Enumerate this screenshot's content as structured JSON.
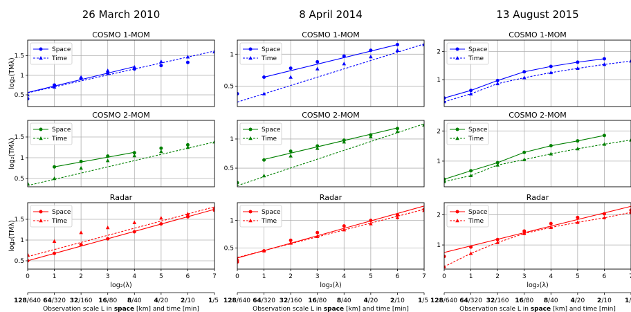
{
  "panel_titles": [
    "COSMO 1-MOM",
    "COSMO 2-MOM",
    "Radar"
  ],
  "ylabel": "log₂(TMλ)",
  "xlabel": "log₂(λ)",
  "legend": [
    "Space",
    "Time"
  ],
  "colors": {
    "COSMO 1-MOM": "#0000ff",
    "COSMO 2-MOM": "#008000",
    "Radar": "#ff0000"
  },
  "scale_axis": {
    "label": "Observation scale L in space [km] and time [min]",
    "ticks": [
      {
        "space": "128",
        "time": "/640"
      },
      {
        "space": "64",
        "time": "/320"
      },
      {
        "space": "32",
        "time": "/160"
      },
      {
        "space": "16",
        "time": "/80"
      },
      {
        "space": "8",
        "time": "/40"
      },
      {
        "space": "4",
        "time": "/20"
      },
      {
        "space": "2",
        "time": "/10"
      },
      {
        "space": "1",
        "time": "/5"
      }
    ]
  },
  "chart_data": [
    {
      "title": "26 March 2010",
      "panels": [
        {
          "name": "COSMO 1-MOM",
          "ylim": [
            0.2,
            1.9
          ],
          "yticks": [
            0.5,
            1.0,
            1.5
          ],
          "show_ylabel": true,
          "series": [
            {
              "name": "Space",
              "style": "solid",
              "marker": "circle",
              "x": [
                0,
                1,
                2,
                3,
                4,
                5,
                6
              ],
              "points": [
                0.4,
                0.75,
                0.92,
                1.05,
                1.16,
                1.25,
                1.33
              ],
              "fit": [
                [
                  0,
                  0.56
                ],
                [
                  4,
                  1.22
                ]
              ]
            },
            {
              "name": "Time",
              "style": "dotted",
              "marker": "triangle",
              "x": [
                0,
                1,
                2,
                3,
                4,
                5,
                6,
                7
              ],
              "points": [
                0.5,
                0.7,
                0.95,
                1.12,
                1.21,
                1.35,
                1.47,
                1.6
              ],
              "fit": [
                [
                  0,
                  0.55
                ],
                [
                  7,
                  1.62
                ]
              ]
            }
          ]
        },
        {
          "name": "COSMO 2-MOM",
          "ylim": [
            0.3,
            1.9
          ],
          "yticks": [
            0.5,
            1.0,
            1.5
          ],
          "show_ylabel": true,
          "series": [
            {
              "name": "Space",
              "style": "solid",
              "marker": "circle",
              "x": [
                1,
                2,
                3,
                4,
                5,
                6
              ],
              "points": [
                0.78,
                0.91,
                1.04,
                1.12,
                1.23,
                1.31
              ],
              "fit": [
                [
                  1,
                  0.78
                ],
                [
                  4,
                  1.13
                ]
              ]
            },
            {
              "name": "Time",
              "style": "dotted",
              "marker": "triangle",
              "x": [
                0,
                1,
                2,
                3,
                4,
                5,
                6,
                7
              ],
              "points": [
                0.38,
                0.5,
                0.75,
                0.93,
                1.05,
                1.15,
                1.25,
                1.38
              ],
              "fit": [
                [
                  0,
                  0.33
                ],
                [
                  7,
                  1.38
                ]
              ]
            }
          ]
        },
        {
          "name": "Radar",
          "ylim": [
            0.3,
            1.9
          ],
          "yticks": [
            0.5,
            1.0,
            1.5
          ],
          "show_ylabel": true,
          "series": [
            {
              "name": "Space",
              "style": "solid",
              "marker": "circle",
              "x": [
                0,
                1,
                2,
                3,
                4,
                5,
                6,
                7
              ],
              "points": [
                0.5,
                0.68,
                0.89,
                1.03,
                1.2,
                1.39,
                1.56,
                1.72
              ],
              "fit": [
                [
                  0,
                  0.5
                ],
                [
                  7,
                  1.74
                ]
              ]
            },
            {
              "name": "Time",
              "style": "dotted",
              "marker": "triangle",
              "x": [
                0,
                1,
                2,
                3,
                4,
                5,
                6,
                7
              ],
              "points": [
                0.65,
                0.97,
                1.18,
                1.3,
                1.42,
                1.53,
                1.63,
                1.78
              ],
              "fit": [
                [
                  0,
                  0.6
                ],
                [
                  7,
                  1.8
                ]
              ]
            }
          ]
        }
      ]
    },
    {
      "title": "8 April 2014",
      "panels": [
        {
          "name": "COSMO 1-MOM",
          "ylim": [
            0.18,
            1.22
          ],
          "yticks": [
            0.5,
            1.0
          ],
          "show_ylabel": false,
          "series": [
            {
              "name": "Space",
              "style": "solid",
              "marker": "circle",
              "x": [
                0,
                1,
                2,
                3,
                4,
                5,
                6
              ],
              "points": [
                0.38,
                0.64,
                0.78,
                0.88,
                0.97,
                1.06,
                1.15
              ],
              "fit": [
                [
                  1,
                  0.64
                ],
                [
                  6,
                  1.15
                ]
              ]
            },
            {
              "name": "Time",
              "style": "dotted",
              "marker": "triangle",
              "x": [
                1,
                2,
                3,
                4,
                5,
                6,
                7
              ],
              "points": [
                0.38,
                0.64,
                0.77,
                0.85,
                0.96,
                1.06,
                1.15
              ],
              "fit": [
                [
                  0,
                  0.25
                ],
                [
                  7,
                  1.16
                ]
              ]
            }
          ]
        },
        {
          "name": "COSMO 2-MOM",
          "ylim": [
            0.18,
            1.32
          ],
          "yticks": [
            0.5,
            1.0
          ],
          "show_ylabel": false,
          "series": [
            {
              "name": "Space",
              "style": "solid",
              "marker": "circle",
              "x": [
                0,
                1,
                2,
                3,
                4,
                5,
                6
              ],
              "points": [
                0.25,
                0.64,
                0.79,
                0.88,
                0.98,
                1.07,
                1.18
              ],
              "fit": [
                [
                  1,
                  0.65
                ],
                [
                  6,
                  1.19
                ]
              ]
            },
            {
              "name": "Time",
              "style": "dotted",
              "marker": "triangle",
              "x": [
                1,
                2,
                3,
                4,
                5,
                6,
                7
              ],
              "points": [
                0.37,
                0.71,
                0.84,
                0.95,
                1.04,
                1.13,
                1.24
              ],
              "fit": [
                [
                  0,
                  0.2
                ],
                [
                  7,
                  1.26
                ]
              ]
            }
          ]
        },
        {
          "name": "Radar",
          "ylim": [
            0.12,
            1.32
          ],
          "yticks": [
            0.5,
            1.0
          ],
          "show_ylabel": false,
          "series": [
            {
              "name": "Space",
              "style": "solid",
              "marker": "circle",
              "x": [
                0,
                1,
                2,
                3,
                4,
                5,
                6,
                7
              ],
              "points": [
                0.25,
                0.45,
                0.64,
                0.78,
                0.9,
                1.0,
                1.1,
                1.2
              ],
              "fit": [
                [
                  0,
                  0.32
                ],
                [
                  7,
                  1.26
                ]
              ]
            },
            {
              "name": "Time",
              "style": "dotted",
              "marker": "triangle",
              "x": [
                0,
                1,
                2,
                3,
                4,
                5,
                6,
                7
              ],
              "points": [
                0.3,
                0.45,
                0.59,
                0.71,
                0.83,
                0.94,
                1.05,
                1.18
              ],
              "fit": [
                [
                  0,
                  0.33
                ],
                [
                  7,
                  1.2
                ]
              ]
            }
          ]
        }
      ]
    },
    {
      "title": "13 August 2015",
      "panels": [
        {
          "name": "COSMO 1-MOM",
          "ylim": [
            0.05,
            2.4
          ],
          "yticks": [
            1,
            2
          ],
          "show_ylabel": false,
          "series": [
            {
              "name": "Space",
              "style": "solid",
              "marker": "circle",
              "x": [
                0,
                1,
                2,
                3,
                4,
                5,
                6
              ],
              "points": [
                0.35,
                0.62,
                0.97,
                1.28,
                1.47,
                1.62,
                1.74
              ],
              "fit": [
                [
                  0,
                  0.35
                ],
                [
                  1,
                  0.62
                ],
                [
                  2,
                  0.97
                ],
                [
                  3,
                  1.28
                ],
                [
                  4,
                  1.47
                ],
                [
                  5,
                  1.62
                ],
                [
                  6,
                  1.74
                ]
              ]
            },
            {
              "name": "Time",
              "style": "dotted",
              "marker": "triangle",
              "x": [
                0,
                1,
                2,
                3,
                4,
                5,
                6,
                7
              ],
              "points": [
                0.22,
                0.5,
                0.86,
                1.07,
                1.25,
                1.4,
                1.54,
                1.66
              ],
              "fit": [
                [
                  0,
                  0.22
                ],
                [
                  1,
                  0.5
                ],
                [
                  2,
                  0.86
                ],
                [
                  3,
                  1.07
                ],
                [
                  4,
                  1.25
                ],
                [
                  5,
                  1.4
                ],
                [
                  6,
                  1.54
                ],
                [
                  7,
                  1.66
                ]
              ]
            }
          ]
        },
        {
          "name": "COSMO 2-MOM",
          "ylim": [
            0.15,
            2.35
          ],
          "yticks": [
            1,
            2
          ],
          "show_ylabel": false,
          "series": [
            {
              "name": "Space",
              "style": "solid",
              "marker": "circle",
              "x": [
                0,
                1,
                2,
                3,
                4,
                5,
                6
              ],
              "points": [
                0.4,
                0.68,
                0.95,
                1.29,
                1.51,
                1.67,
                1.85
              ],
              "fit": [
                [
                  0,
                  0.4
                ],
                [
                  1,
                  0.68
                ],
                [
                  2,
                  0.95
                ],
                [
                  3,
                  1.29
                ],
                [
                  4,
                  1.51
                ],
                [
                  5,
                  1.67
                ],
                [
                  6,
                  1.85
                ]
              ]
            },
            {
              "name": "Time",
              "style": "dotted",
              "marker": "triangle",
              "x": [
                0,
                1,
                2,
                3,
                4,
                5,
                6,
                7
              ],
              "points": [
                0.32,
                0.52,
                0.87,
                1.05,
                1.24,
                1.41,
                1.56,
                1.7
              ],
              "fit": [
                [
                  0,
                  0.32
                ],
                [
                  1,
                  0.52
                ],
                [
                  2,
                  0.87
                ],
                [
                  3,
                  1.05
                ],
                [
                  4,
                  1.24
                ],
                [
                  5,
                  1.41
                ],
                [
                  6,
                  1.56
                ],
                [
                  7,
                  1.7
                ]
              ]
            }
          ]
        },
        {
          "name": "Radar",
          "ylim": [
            0.2,
            2.4
          ],
          "yticks": [
            1,
            2
          ],
          "show_ylabel": false,
          "series": [
            {
              "name": "Space",
              "style": "solid",
              "marker": "circle",
              "x": [
                0,
                1,
                2,
                3,
                4,
                5,
                6,
                7
              ],
              "points": [
                0.62,
                0.93,
                1.18,
                1.46,
                1.71,
                1.91,
                2.03,
                2.15
              ],
              "fit": [
                [
                  0,
                  0.75
                ],
                [
                  7,
                  2.28
                ]
              ]
            },
            {
              "name": "Time",
              "style": "dotted",
              "marker": "triangle",
              "x": [
                0,
                1,
                2,
                3,
                4,
                5,
                6,
                7
              ],
              "points": [
                0.28,
                0.72,
                1.08,
                1.38,
                1.58,
                1.75,
                1.9,
                2.08
              ],
              "fit": [
                [
                  0,
                  0.28
                ],
                [
                  1,
                  0.72
                ],
                [
                  2,
                  1.08
                ],
                [
                  3,
                  1.38
                ],
                [
                  4,
                  1.58
                ],
                [
                  5,
                  1.75
                ],
                [
                  6,
                  1.9
                ],
                [
                  7,
                  2.08
                ]
              ]
            }
          ]
        }
      ]
    }
  ]
}
